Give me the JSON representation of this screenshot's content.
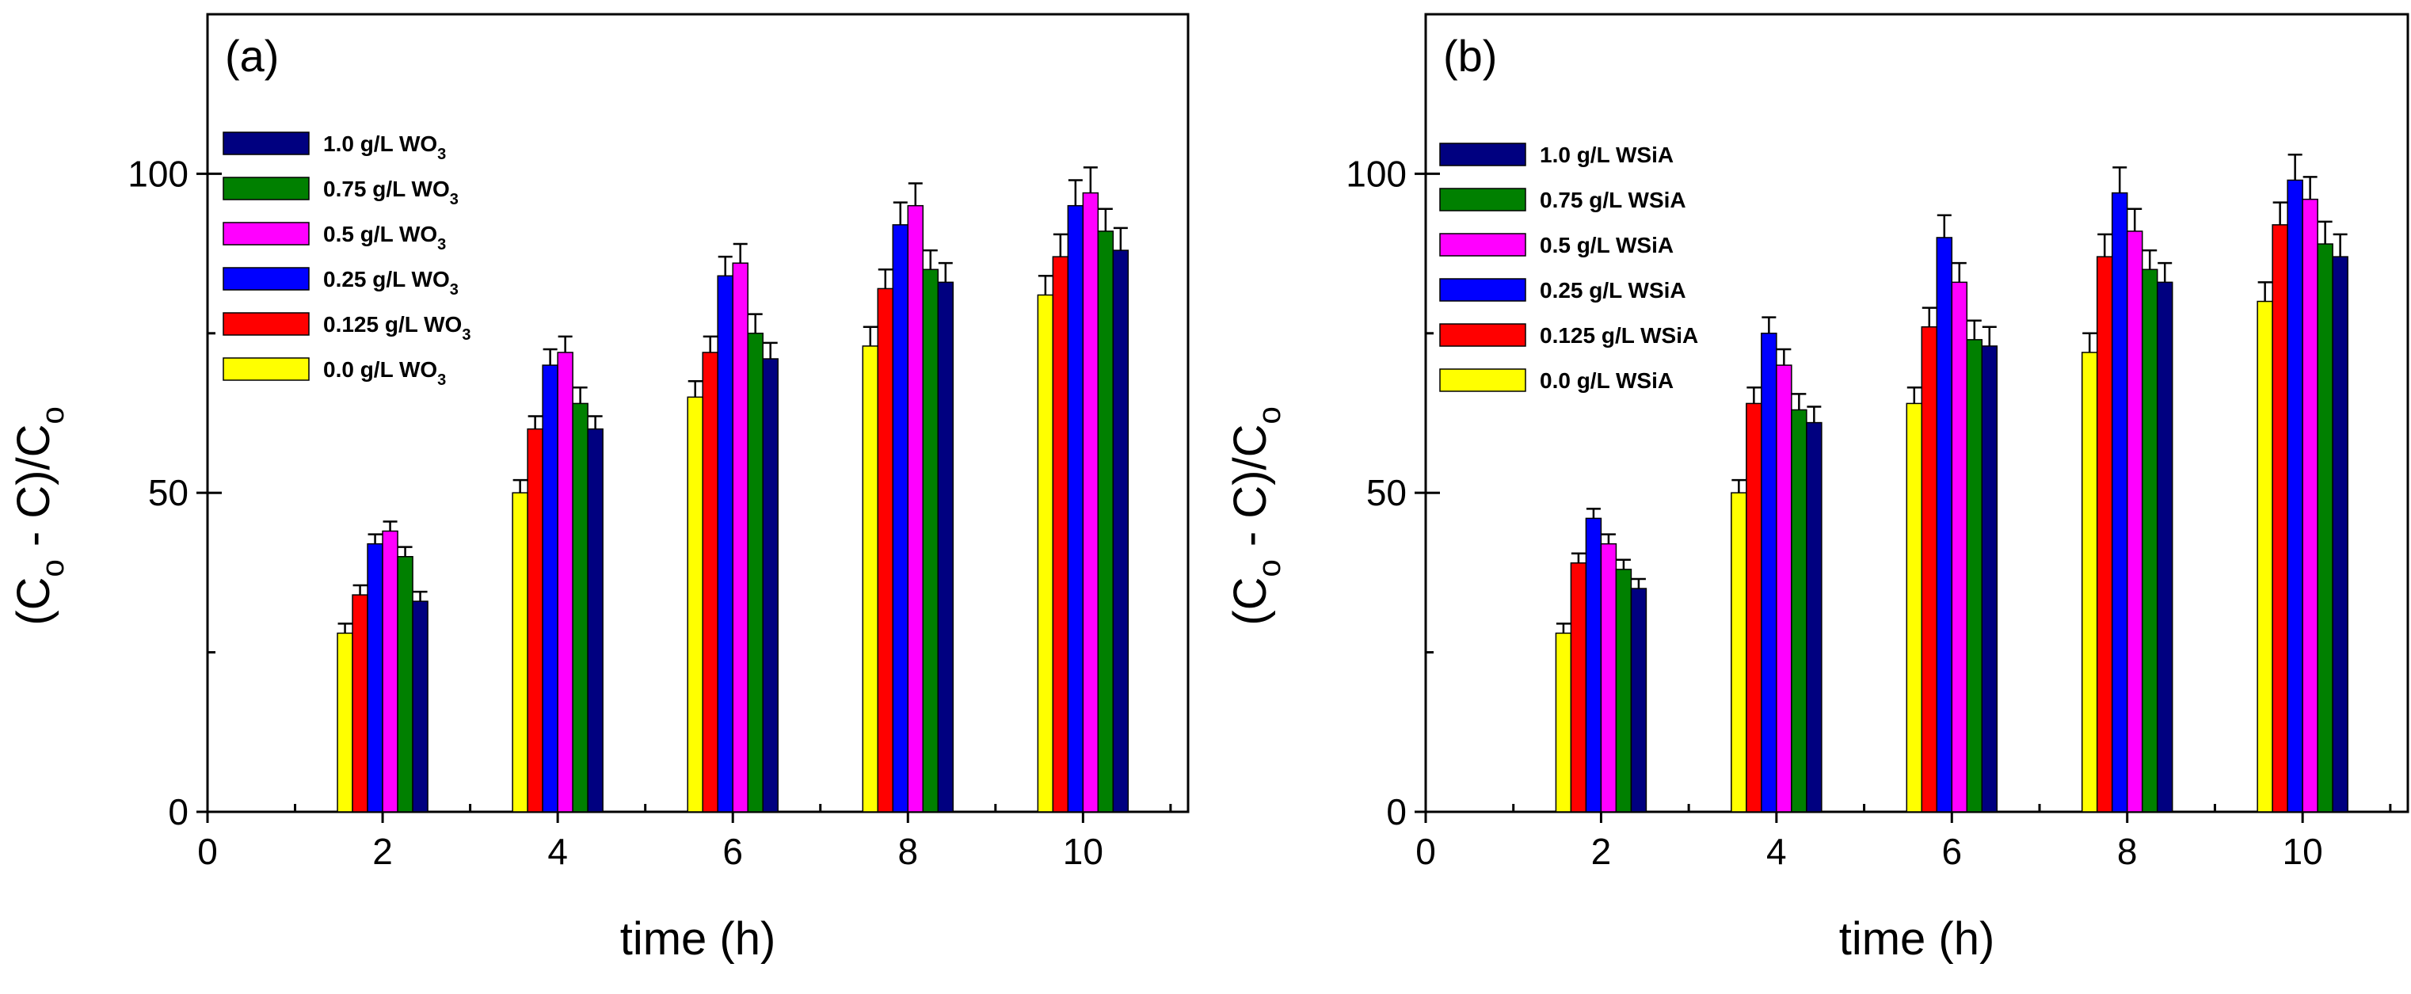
{
  "chart_data": [
    {
      "type": "bar",
      "panel_label": "(a)",
      "xlabel": "time (h)",
      "ylabel": {
        "paren_open": "(C",
        "sub1": "o",
        "mid": " - C)/C",
        "sub2": "o"
      },
      "xlim": [
        0,
        11.2
      ],
      "ylim": [
        0,
        125
      ],
      "x_ticks": [
        "0",
        "2",
        "4",
        "6",
        "8",
        "10"
      ],
      "y_ticks": [
        "0",
        "50",
        "100"
      ],
      "categories": [
        2,
        4,
        6,
        8,
        10
      ],
      "series": [
        {
          "name": "0.0 g/L WO",
          "sub": "3",
          "color": "#ffff00",
          "values": [
            28,
            50,
            65,
            73,
            81
          ],
          "errors": [
            1.5,
            2,
            2.5,
            3,
            3
          ]
        },
        {
          "name": "0.125 g/L WO",
          "sub": "3",
          "color": "#ff0000",
          "values": [
            34,
            60,
            72,
            82,
            87
          ],
          "errors": [
            1.5,
            2,
            2.5,
            3,
            3.5
          ]
        },
        {
          "name": "0.25 g/L WO",
          "sub": "3",
          "color": "#0000ff",
          "values": [
            42,
            70,
            84,
            92,
            95
          ],
          "errors": [
            1.5,
            2.5,
            3,
            3.5,
            4
          ]
        },
        {
          "name": "0.5 g/L WO",
          "sub": "3",
          "color": "#ff00ff",
          "values": [
            44,
            72,
            86,
            95,
            97
          ],
          "errors": [
            1.5,
            2.5,
            3,
            3.5,
            4
          ]
        },
        {
          "name": "0.75 g/L WO",
          "sub": "3",
          "color": "#008000",
          "values": [
            40,
            64,
            75,
            85,
            91
          ],
          "errors": [
            1.5,
            2.5,
            3,
            3,
            3.5
          ]
        },
        {
          "name": "1.0 g/L WO",
          "sub": "3",
          "color": "#000080",
          "values": [
            33,
            60,
            71,
            83,
            88
          ],
          "errors": [
            1.5,
            2,
            2.5,
            3,
            3.5
          ]
        }
      ]
    },
    {
      "type": "bar",
      "panel_label": "(b)",
      "xlabel": "time (h)",
      "ylabel": {
        "paren_open": "(C",
        "sub1": "o",
        "mid": " - C)/C",
        "sub2": "o"
      },
      "xlim": [
        0,
        11.2
      ],
      "ylim": [
        0,
        125
      ],
      "x_ticks": [
        "0",
        "2",
        "4",
        "6",
        "8",
        "10"
      ],
      "y_ticks": [
        "0",
        "50",
        "100"
      ],
      "categories": [
        2,
        4,
        6,
        8,
        10
      ],
      "series": [
        {
          "name": "0.0 g/L WSiA",
          "sub": "",
          "color": "#ffff00",
          "values": [
            28,
            50,
            64,
            72,
            80
          ],
          "errors": [
            1.5,
            2,
            2.5,
            3,
            3
          ]
        },
        {
          "name": "0.125 g/L WSiA",
          "sub": "",
          "color": "#ff0000",
          "values": [
            39,
            64,
            76,
            87,
            92
          ],
          "errors": [
            1.5,
            2.5,
            3,
            3.5,
            3.5
          ]
        },
        {
          "name": "0.25 g/L WSiA",
          "sub": "",
          "color": "#0000ff",
          "values": [
            46,
            75,
            90,
            97,
            99
          ],
          "errors": [
            1.5,
            2.5,
            3.5,
            4,
            4
          ]
        },
        {
          "name": "0.5 g/L WSiA",
          "sub": "",
          "color": "#ff00ff",
          "values": [
            42,
            70,
            83,
            91,
            96
          ],
          "errors": [
            1.5,
            2.5,
            3,
            3.5,
            3.5
          ]
        },
        {
          "name": "0.75 g/L WSiA",
          "sub": "",
          "color": "#008000",
          "values": [
            38,
            63,
            74,
            85,
            89
          ],
          "errors": [
            1.5,
            2.5,
            3,
            3,
            3.5
          ]
        },
        {
          "name": "1.0 g/L WSiA",
          "sub": "",
          "color": "#000080",
          "values": [
            35,
            61,
            73,
            83,
            87
          ],
          "errors": [
            1.5,
            2.5,
            3,
            3,
            3.5
          ]
        }
      ]
    }
  ]
}
